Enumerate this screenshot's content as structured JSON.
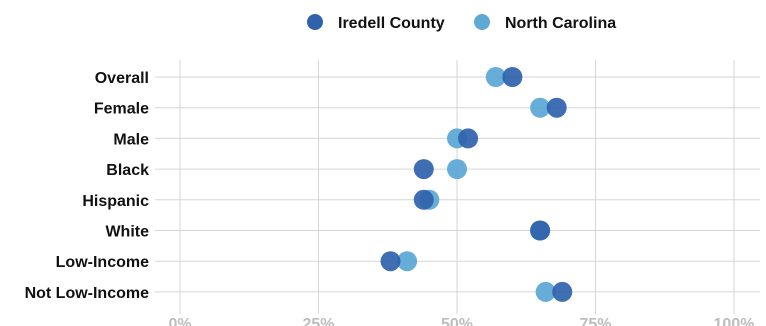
{
  "colors": {
    "iredell": "#2f62ab",
    "nc": "#5ea9d6",
    "grid": "#d6d6d6",
    "tick": "#bdbdbd"
  },
  "chart_data": {
    "type": "scatter",
    "subtype": "dot-plot",
    "title": "",
    "xlabel": "",
    "ylabel": "",
    "xlim": [
      0,
      100
    ],
    "x_ticks": [
      0,
      25,
      50,
      75,
      100
    ],
    "x_tick_labels": [
      "0%",
      "25%",
      "50%",
      "75%",
      "100%"
    ],
    "grid": true,
    "legend_position": "top",
    "categories": [
      "Overall",
      "Female",
      "Male",
      "Black",
      "Hispanic",
      "White",
      "Low-Income",
      "Not Low-Income"
    ],
    "series": [
      {
        "name": "Iredell County",
        "color_key": "iredell",
        "values": [
          60,
          68,
          52,
          44,
          44,
          65,
          38,
          69
        ]
      },
      {
        "name": "North Carolina",
        "color_key": "nc",
        "values": [
          57,
          65,
          50,
          50,
          45,
          65,
          41,
          66
        ]
      }
    ]
  }
}
